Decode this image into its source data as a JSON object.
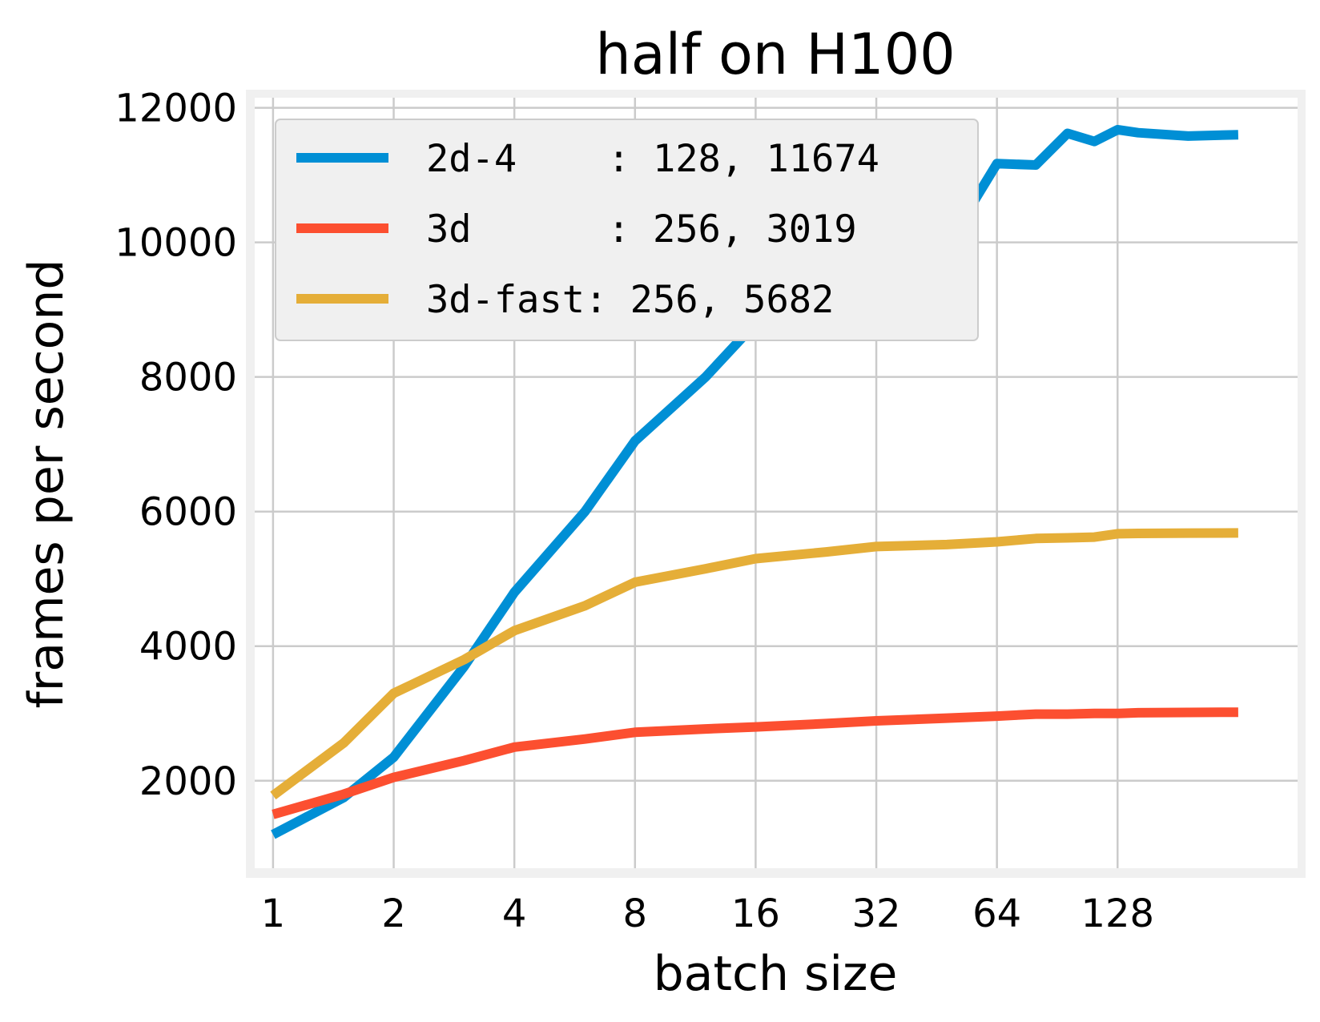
{
  "chart_data": {
    "type": "line",
    "title": "half on H100",
    "xlabel": "batch size",
    "ylabel": "frames per second",
    "x_scale": "log2",
    "x_ticks": [
      1,
      2,
      4,
      8,
      16,
      32,
      64,
      128
    ],
    "x_tick_labels": [
      "1",
      "2",
      "4",
      "8",
      "16",
      "32",
      "64",
      "128"
    ],
    "xlim": [
      0.9,
      360
    ],
    "y_ticks": [
      2000,
      4000,
      6000,
      8000,
      10000,
      12000
    ],
    "y_tick_labels": [
      "2000",
      "4000",
      "6000",
      "8000",
      "10000",
      "12000"
    ],
    "ylim": [
      700,
      12150
    ],
    "grid": true,
    "legend_position": "top-left",
    "series": [
      {
        "name": "2d-4",
        "legend": "2d-4    : 128, 11674",
        "color": "#008fd5",
        "x": [
          1,
          1.5,
          2,
          3,
          4,
          6,
          8,
          12,
          16,
          24,
          32,
          48,
          64,
          80,
          96,
          112,
          128,
          144,
          192,
          256
        ],
        "y": [
          1200,
          1750,
          2350,
          3700,
          4800,
          6000,
          7050,
          8000,
          8800,
          9400,
          9950,
          9950,
          11170,
          11150,
          11620,
          11500,
          11674,
          11630,
          11580,
          11600
        ]
      },
      {
        "name": "3d",
        "legend": "3d      : 256, 3019",
        "color": "#fc4f30",
        "x": [
          1,
          1.5,
          2,
          3,
          4,
          6,
          8,
          12,
          16,
          24,
          32,
          48,
          64,
          80,
          96,
          112,
          128,
          144,
          192,
          256
        ],
        "y": [
          1500,
          1800,
          2050,
          2300,
          2500,
          2620,
          2720,
          2770,
          2800,
          2850,
          2890,
          2930,
          2960,
          2990,
          2990,
          3000,
          3000,
          3010,
          3015,
          3019
        ]
      },
      {
        "name": "3d-fast",
        "legend": "3d-fast: 256, 5682",
        "color": "#e5ae38",
        "x": [
          1,
          1.5,
          2,
          3,
          4,
          6,
          8,
          12,
          16,
          24,
          32,
          48,
          64,
          80,
          96,
          112,
          128,
          144,
          192,
          256
        ],
        "y": [
          1780,
          2560,
          3300,
          3800,
          4230,
          4600,
          4950,
          5150,
          5300,
          5400,
          5480,
          5510,
          5550,
          5600,
          5610,
          5620,
          5670,
          5675,
          5680,
          5682
        ]
      }
    ]
  }
}
